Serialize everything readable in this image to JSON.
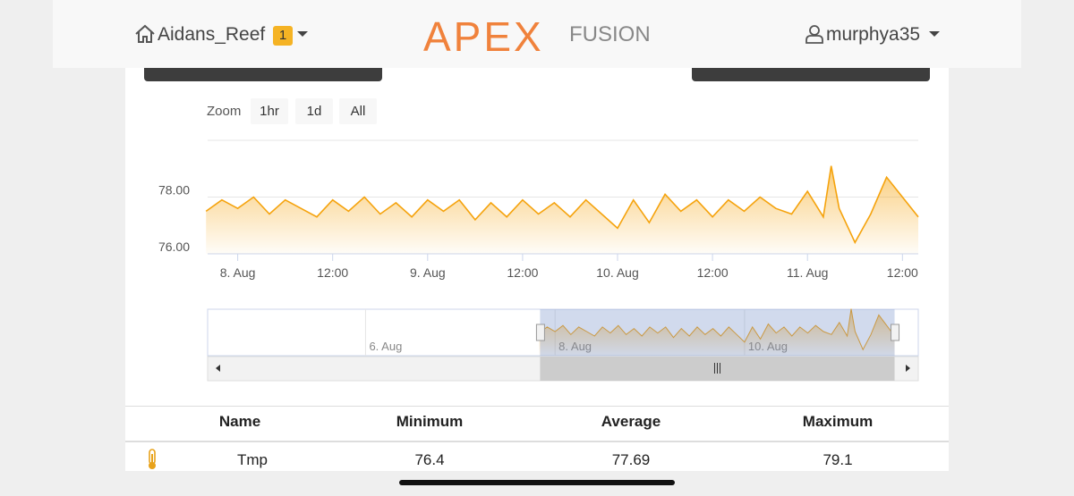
{
  "header": {
    "site": "Aidans_Reef",
    "badge": "1",
    "logo_main": "APEX",
    "logo_sub": "FUSION",
    "user": "murphya35"
  },
  "zoom": {
    "label": "Zoom",
    "buttons": [
      "1hr",
      "1d",
      "All"
    ]
  },
  "chart_data": {
    "type": "line",
    "x": [
      -4,
      -2,
      0,
      2,
      4,
      6,
      8,
      10,
      12,
      14,
      16,
      18,
      20,
      22,
      24,
      26,
      28,
      30,
      32,
      34,
      36,
      38,
      40,
      42,
      44,
      46,
      48,
      50,
      52,
      54,
      56,
      58,
      60,
      62,
      64,
      66,
      68,
      70,
      72,
      74,
      75,
      76,
      78,
      80,
      82,
      84,
      86
    ],
    "series": [
      {
        "color": "#f5a30d",
        "values": [
          77.5,
          77.9,
          77.6,
          78.0,
          77.4,
          77.9,
          77.6,
          77.3,
          77.9,
          77.5,
          78.0,
          77.4,
          77.8,
          77.3,
          77.9,
          77.5,
          77.9,
          77.2,
          77.8,
          77.3,
          77.9,
          77.4,
          77.8,
          77.3,
          77.9,
          77.4,
          76.9,
          77.9,
          77.1,
          78.1,
          77.5,
          77.9,
          77.3,
          77.9,
          77.5,
          78.0,
          77.6,
          77.4,
          78.2,
          77.3,
          79.1,
          77.6,
          76.4,
          77.4,
          78.7,
          78.0,
          77.3
        ]
      }
    ],
    "xlim": [
      -3.8,
      86
    ],
    "xticks": [
      {
        "value": 0,
        "label": "8. Aug"
      },
      {
        "value": 12,
        "label": "12:00"
      },
      {
        "value": 24,
        "label": "9. Aug"
      },
      {
        "value": 36,
        "label": "12:00"
      },
      {
        "value": 48,
        "label": "10. Aug"
      },
      {
        "value": 60,
        "label": "12:00"
      },
      {
        "value": 72,
        "label": "11. Aug"
      },
      {
        "value": 84,
        "label": "12:00"
      }
    ],
    "ylim": [
      76,
      80
    ],
    "yticks": [
      {
        "value": 76,
        "label": "76.00"
      },
      {
        "value": 78,
        "label": "78.00"
      }
    ],
    "grid": true,
    "navigator": {
      "xlim": [
        -88,
        92
      ],
      "xticks": [
        {
          "value": -48,
          "label": "6. Aug"
        },
        {
          "value": 0,
          "label": "8. Aug"
        },
        {
          "value": 48,
          "label": "10. Aug"
        }
      ]
    }
  },
  "table": {
    "columns": [
      "Name",
      "Minimum",
      "Average",
      "Maximum"
    ],
    "rows": [
      [
        "Tmp",
        76.4,
        77.69,
        79.1
      ]
    ]
  }
}
